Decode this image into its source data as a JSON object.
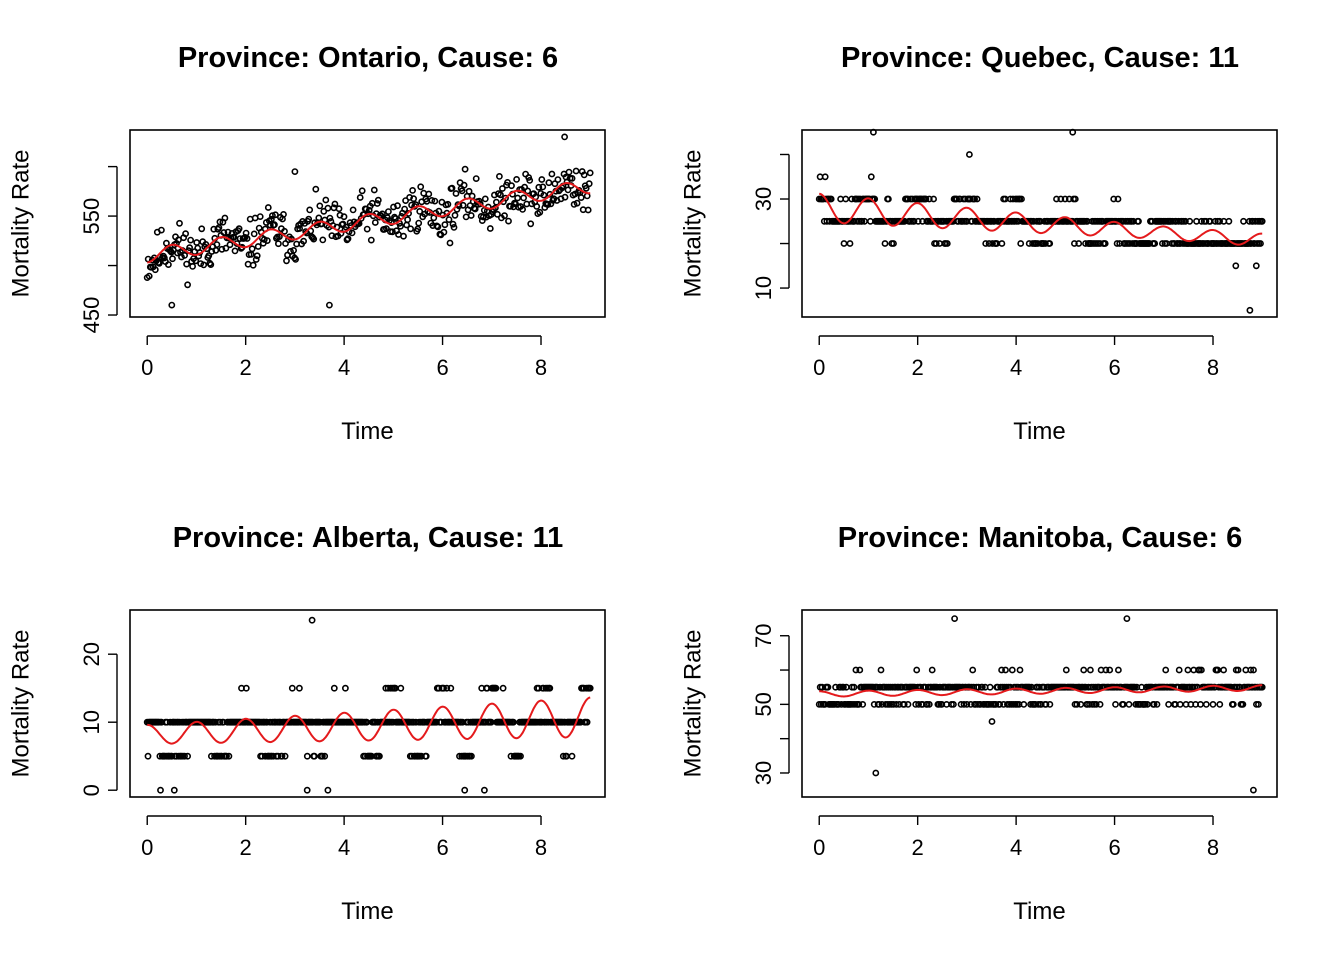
{
  "chart_data": [
    {
      "type": "scatter",
      "title": "Province: Ontario, Cause: 6",
      "xlabel": "Time",
      "ylabel": "Mortality Rate",
      "xlim": [
        -0.35,
        9.3
      ],
      "ylim": [
        448,
        637
      ],
      "xticks": [
        0,
        2,
        4,
        6,
        8
      ],
      "yticks": [
        450,
        500,
        550,
        600
      ],
      "ytick_labels": [
        "450",
        "",
        "550",
        ""
      ],
      "colors": {
        "points": "#000000",
        "fit": "#e41a1c"
      },
      "trend": {
        "base": 510,
        "slope": 7.8,
        "amp": 7,
        "freq": 1.0,
        "phase": -1.571
      },
      "points": {
        "n": 440,
        "spread": 36,
        "step": 0,
        "min": 455,
        "max": 630,
        "seed": 11
      },
      "outliers": [
        [
          8.48,
          630
        ],
        [
          3.0,
          595
        ],
        [
          0.5,
          460
        ],
        [
          3.7,
          460
        ]
      ]
    },
    {
      "type": "scatter",
      "title": "Province: Quebec, Cause: 11",
      "xlabel": "Time",
      "ylabel": "Mortality Rate",
      "xlim": [
        -0.35,
        9.3
      ],
      "ylim": [
        3.5,
        45.5
      ],
      "xticks": [
        0,
        2,
        4,
        6,
        8
      ],
      "yticks": [
        10,
        20,
        30,
        40
      ],
      "ytick_labels": [
        "10",
        "",
        "30",
        ""
      ],
      "colors": {
        "points": "#000000",
        "fit": "#e41a1c"
      },
      "trend": {
        "base": 28,
        "slope": -0.8,
        "amp": 3.2,
        "freq": 1.0,
        "phase": 1.571,
        "decay": 0.08
      },
      "points": {
        "n": 520,
        "spread": 6,
        "step": 5,
        "min": 5,
        "max": 45,
        "seed": 23
      },
      "outliers": [
        [
          1.1,
          45
        ],
        [
          5.15,
          45
        ],
        [
          8.75,
          5
        ],
        [
          3.05,
          40
        ]
      ]
    },
    {
      "type": "scatter",
      "title": "Province: Alberta, Cause: 11",
      "xlabel": "Time",
      "ylabel": "Mortality Rate",
      "xlim": [
        -0.35,
        9.3
      ],
      "ylim": [
        -1,
        26.5
      ],
      "xticks": [
        0,
        2,
        4,
        6,
        8
      ],
      "yticks": [
        0,
        10,
        20
      ],
      "ytick_labels": [
        "0",
        "10",
        "20"
      ],
      "colors": {
        "points": "#000000",
        "fit": "#e41a1c"
      },
      "trend": {
        "base": 8.2,
        "slope": 0.28,
        "amp": 1.4,
        "freq": 1.0,
        "phase": 1.571,
        "grow": 0.12
      },
      "points": {
        "n": 560,
        "spread": 3.5,
        "step": 5,
        "min": 0,
        "max": 25,
        "seed": 37
      },
      "outliers": [
        [
          3.35,
          25
        ],
        [
          0.27,
          0
        ],
        [
          0.55,
          0
        ],
        [
          3.25,
          0
        ],
        [
          3.67,
          0
        ],
        [
          6.45,
          0
        ],
        [
          6.85,
          0
        ]
      ]
    },
    {
      "type": "scatter",
      "title": "Province: Manitoba, Cause: 6",
      "xlabel": "Time",
      "ylabel": "Mortality Rate",
      "xlim": [
        -0.35,
        9.3
      ],
      "ylim": [
        23,
        77.5
      ],
      "xticks": [
        0,
        2,
        4,
        6,
        8
      ],
      "yticks": [
        30,
        40,
        50,
        60,
        70
      ],
      "ytick_labels": [
        "30",
        "",
        "50",
        "",
        "70"
      ],
      "colors": {
        "points": "#000000",
        "fit": "#e41a1c"
      },
      "trend": {
        "base": 53,
        "slope": 0.2,
        "amp": 0.8,
        "freq": 1.0,
        "phase": 1.571
      },
      "points": {
        "n": 460,
        "spread": 7,
        "step": 5,
        "min": 25,
        "max": 75,
        "seed": 53
      },
      "outliers": [
        [
          1.15,
          30
        ],
        [
          8.82,
          25
        ],
        [
          2.75,
          75
        ],
        [
          6.25,
          75
        ]
      ]
    }
  ]
}
